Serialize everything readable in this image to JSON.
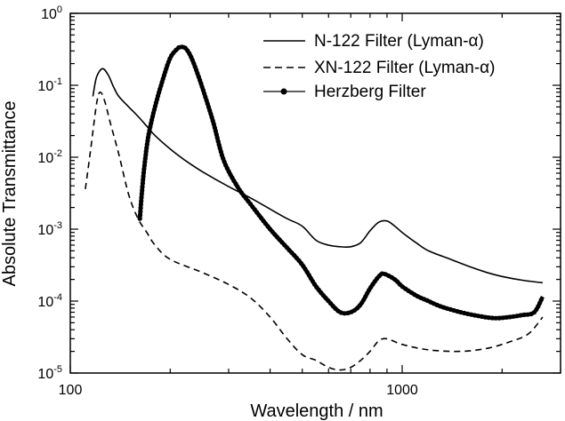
{
  "chart_data": {
    "type": "line",
    "xlabel": "Wavelength / nm",
    "ylabel": "Absolute Transmittance",
    "x_scale": "log",
    "y_scale": "log",
    "xlim": [
      100,
      3000
    ],
    "ylim": [
      1e-05,
      1
    ],
    "x_ticks": [
      {
        "value": 100,
        "label": "100"
      },
      {
        "value": 1000,
        "label": "1000"
      }
    ],
    "y_ticks": [
      {
        "value": 1,
        "base": "10",
        "exp": "0"
      },
      {
        "value": 0.1,
        "base": "10",
        "exp": "-1"
      },
      {
        "value": 0.01,
        "base": "10",
        "exp": "-2"
      },
      {
        "value": 0.001,
        "base": "10",
        "exp": "-3"
      },
      {
        "value": 0.0001,
        "base": "10",
        "exp": "-4"
      },
      {
        "value": 1e-05,
        "base": "10",
        "exp": "-5"
      }
    ],
    "legend_position": "top-right",
    "grid": false,
    "series": [
      {
        "name": "N-122 Filter   (Lyman-α)",
        "style": "solid",
        "color": "#000000",
        "points": [
          [
            117,
            0.07
          ],
          [
            120,
            0.13
          ],
          [
            125,
            0.17
          ],
          [
            130,
            0.14
          ],
          [
            135,
            0.095
          ],
          [
            140,
            0.07
          ],
          [
            150,
            0.05
          ],
          [
            160,
            0.037
          ],
          [
            170,
            0.027
          ],
          [
            180,
            0.02
          ],
          [
            200,
            0.013
          ],
          [
            220,
            0.0093
          ],
          [
            250,
            0.0063
          ],
          [
            300,
            0.0039
          ],
          [
            350,
            0.0027
          ],
          [
            400,
            0.0019
          ],
          [
            450,
            0.0014
          ],
          [
            500,
            0.0011
          ],
          [
            550,
            0.0007
          ],
          [
            600,
            0.0006
          ],
          [
            650,
            0.00057
          ],
          [
            700,
            0.00057
          ],
          [
            750,
            0.00065
          ],
          [
            800,
            0.00095
          ],
          [
            850,
            0.00125
          ],
          [
            900,
            0.0013
          ],
          [
            950,
            0.0011
          ],
          [
            1000,
            0.0009
          ],
          [
            1100,
            0.00065
          ],
          [
            1200,
            0.0005
          ],
          [
            1400,
            0.00038
          ],
          [
            1600,
            0.0003
          ],
          [
            1800,
            0.00025
          ],
          [
            2000,
            0.00022
          ],
          [
            2300,
            0.000195
          ],
          [
            2650,
            0.00018
          ]
        ]
      },
      {
        "name": "XN-122 Filter (Lyman-α)",
        "style": "dashed",
        "color": "#000000",
        "points": [
          [
            111,
            0.0036
          ],
          [
            115,
            0.012
          ],
          [
            120,
            0.055
          ],
          [
            123,
            0.08
          ],
          [
            127,
            0.06
          ],
          [
            132,
            0.03
          ],
          [
            140,
            0.011
          ],
          [
            150,
            0.003
          ],
          [
            160,
            0.0014
          ],
          [
            170,
            0.0009
          ],
          [
            180,
            0.0006
          ],
          [
            200,
            0.00038
          ],
          [
            250,
            0.00025
          ],
          [
            300,
            0.00017
          ],
          [
            350,
            0.00011
          ],
          [
            400,
            6e-05
          ],
          [
            450,
            3e-05
          ],
          [
            500,
            1.8e-05
          ],
          [
            550,
            1.5e-05
          ],
          [
            600,
            1.2e-05
          ],
          [
            650,
            1.1e-05
          ],
          [
            700,
            1.2e-05
          ],
          [
            750,
            1.5e-05
          ],
          [
            800,
            2e-05
          ],
          [
            850,
            2.8e-05
          ],
          [
            900,
            3e-05
          ],
          [
            1000,
            2.5e-05
          ],
          [
            1200,
            2.1e-05
          ],
          [
            1500,
            2e-05
          ],
          [
            1800,
            2.2e-05
          ],
          [
            2100,
            2.7e-05
          ],
          [
            2400,
            3.5e-05
          ],
          [
            2650,
            6e-05
          ]
        ]
      },
      {
        "name": "Herzberg Filter",
        "style": "dotted-line",
        "color": "#000000",
        "points": [
          [
            162,
            0.0014
          ],
          [
            165,
            0.004
          ],
          [
            168,
            0.009
          ],
          [
            172,
            0.02
          ],
          [
            180,
            0.05
          ],
          [
            190,
            0.12
          ],
          [
            200,
            0.24
          ],
          [
            210,
            0.32
          ],
          [
            215,
            0.34
          ],
          [
            222,
            0.33
          ],
          [
            230,
            0.26
          ],
          [
            240,
            0.16
          ],
          [
            255,
            0.07
          ],
          [
            270,
            0.03
          ],
          [
            290,
            0.009
          ],
          [
            320,
            0.0038
          ],
          [
            350,
            0.0022
          ],
          [
            400,
            0.001
          ],
          [
            450,
            0.00055
          ],
          [
            500,
            0.00032
          ],
          [
            550,
            0.00016
          ],
          [
            600,
            0.0001
          ],
          [
            650,
            7e-05
          ],
          [
            700,
            7e-05
          ],
          [
            750,
            9e-05
          ],
          [
            800,
            0.00015
          ],
          [
            850,
            0.00022
          ],
          [
            880,
            0.00024
          ],
          [
            950,
            0.0002
          ],
          [
            1000,
            0.00016
          ],
          [
            1100,
            0.00012
          ],
          [
            1200,
            0.0001
          ],
          [
            1300,
            8.5e-05
          ],
          [
            1500,
            7e-05
          ],
          [
            1700,
            6.2e-05
          ],
          [
            1900,
            5.8e-05
          ],
          [
            2100,
            6e-05
          ],
          [
            2300,
            6.4e-05
          ],
          [
            2500,
            7e-05
          ],
          [
            2650,
            0.000115
          ]
        ]
      }
    ]
  }
}
